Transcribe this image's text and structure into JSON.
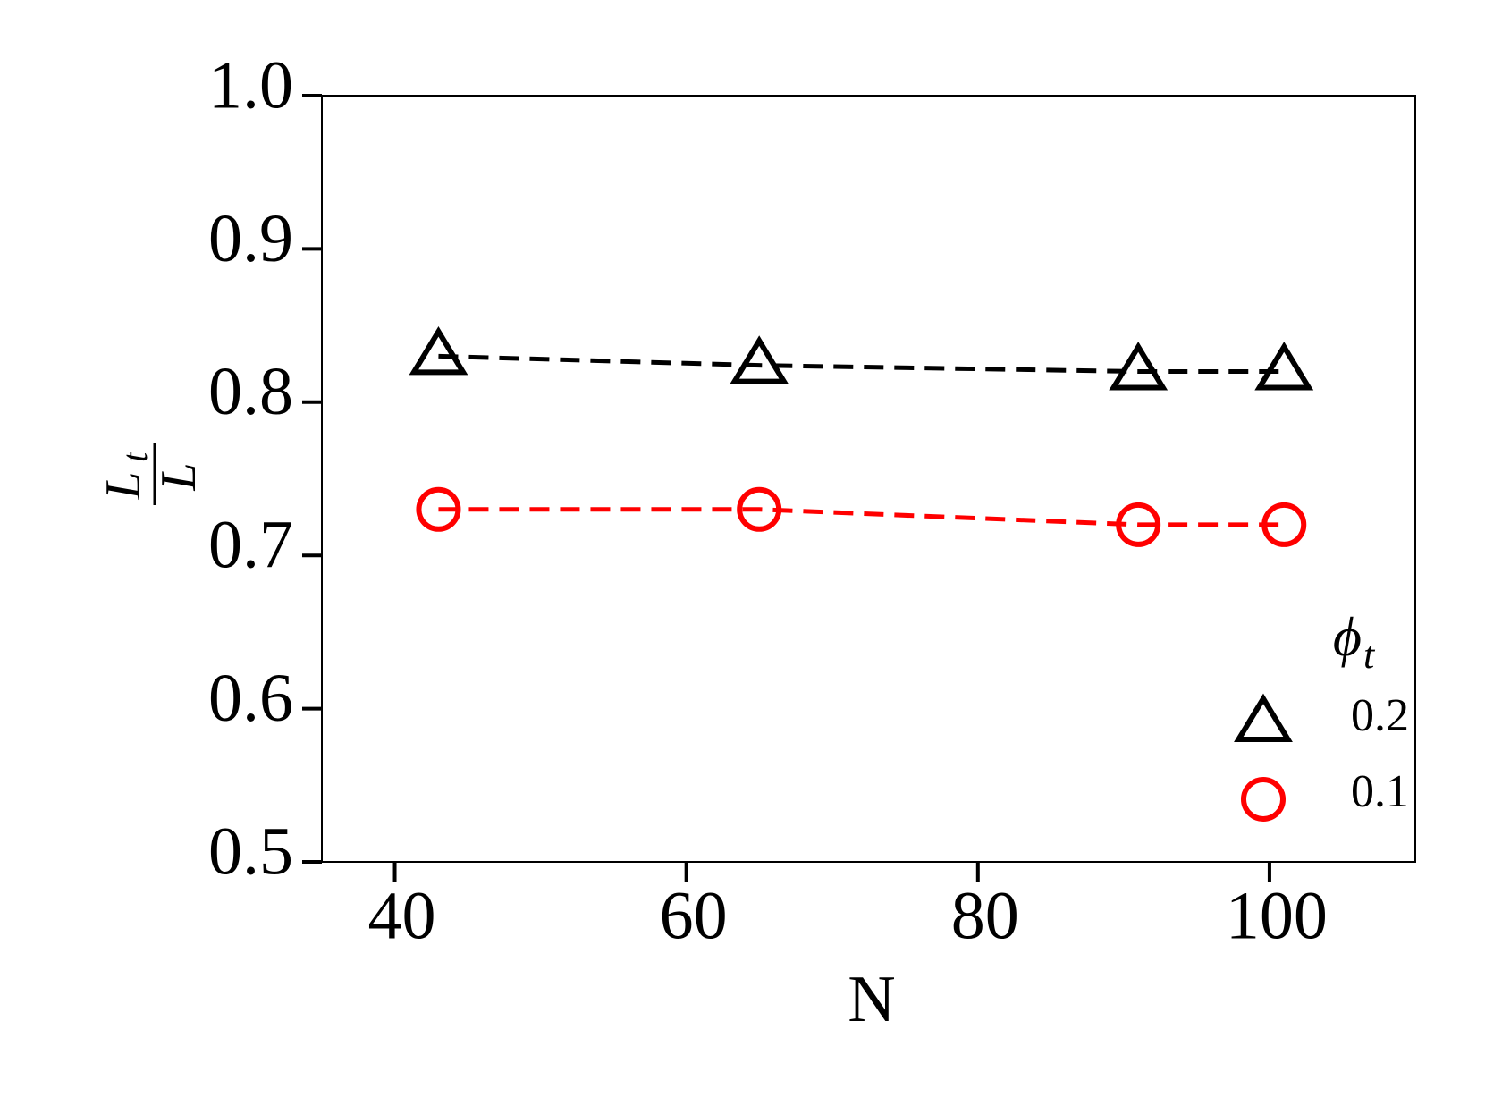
{
  "chart_data": {
    "type": "line",
    "xlabel": "N",
    "ylabel_numerator": "L",
    "ylabel_subscript": "t",
    "ylabel_denominator": "L",
    "legend_title": "ϕ",
    "legend_title_subscript": "t",
    "legend": "lower right",
    "x": [
      43,
      65,
      91,
      101
    ],
    "series": [
      {
        "name": "0.2",
        "color": "#000000",
        "marker": "triangle",
        "values": [
          0.83,
          0.824,
          0.82,
          0.82
        ]
      },
      {
        "name": "0.1",
        "color": "#ff0000",
        "marker": "circle",
        "values": [
          0.73,
          0.73,
          0.72,
          0.72
        ]
      }
    ],
    "xlim": [
      35,
      110
    ],
    "xticks": [
      40,
      60,
      80,
      100
    ],
    "ylim": [
      0.5,
      1.0
    ],
    "yticks": [
      0.5,
      0.6,
      0.7,
      0.8,
      0.9,
      {
        "value": 1.0,
        "label": "1.0"
      }
    ],
    "grid": false
  }
}
